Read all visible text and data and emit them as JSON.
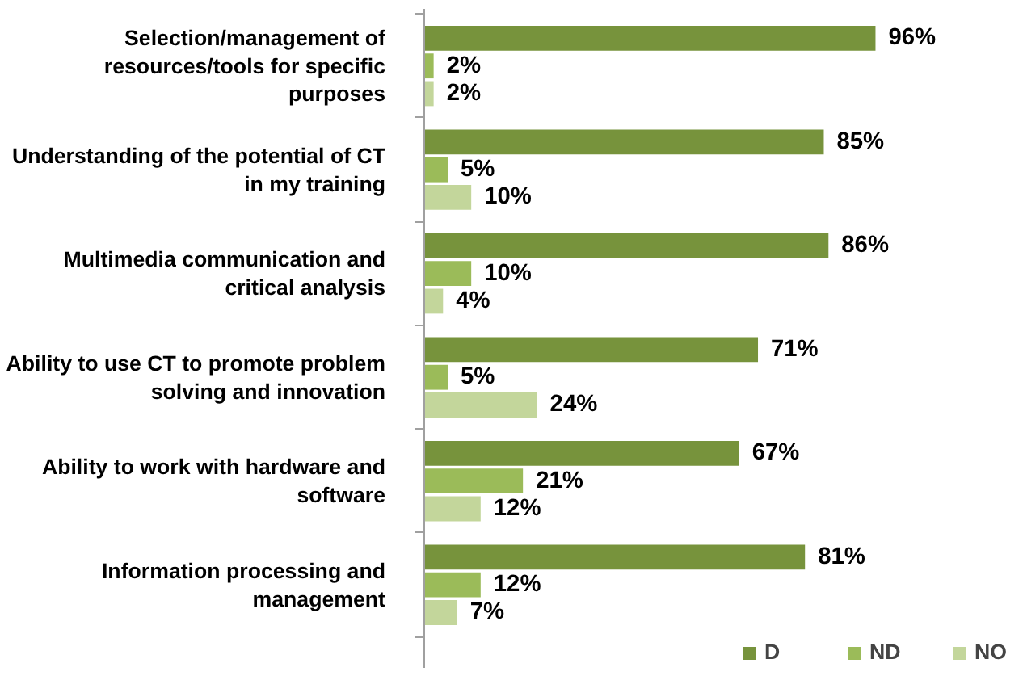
{
  "chart_data": {
    "type": "bar",
    "orientation": "horizontal",
    "legend": "bottom right",
    "grid": false,
    "categories": [
      "Selection/management of resources/tools for specific purposes",
      "Understanding of the potential of CT in my training",
      "Multimedia communication and critical analysis",
      "Ability to use CT to promote problem solving and innovation",
      "Ability to work with hardware and software",
      "Information processing and management"
    ],
    "series": [
      {
        "name": "D",
        "color": "#77933c",
        "values": [
          96,
          85,
          86,
          71,
          67,
          81
        ],
        "value_labels": [
          "96%",
          "85%",
          "86%",
          "71%",
          "67%",
          "81%"
        ]
      },
      {
        "name": "ND",
        "color": "#9bbb59",
        "values": [
          2,
          5,
          10,
          5,
          21,
          12
        ],
        "value_labels": [
          "2%",
          "5%",
          "10%",
          "5%",
          "21%",
          "12%"
        ]
      },
      {
        "name": "NO",
        "color": "#c3d69b",
        "values": [
          2,
          10,
          4,
          24,
          12,
          7
        ],
        "value_labels": [
          "2%",
          "10%",
          "4%",
          "24%",
          "12%",
          "7%"
        ]
      }
    ]
  }
}
